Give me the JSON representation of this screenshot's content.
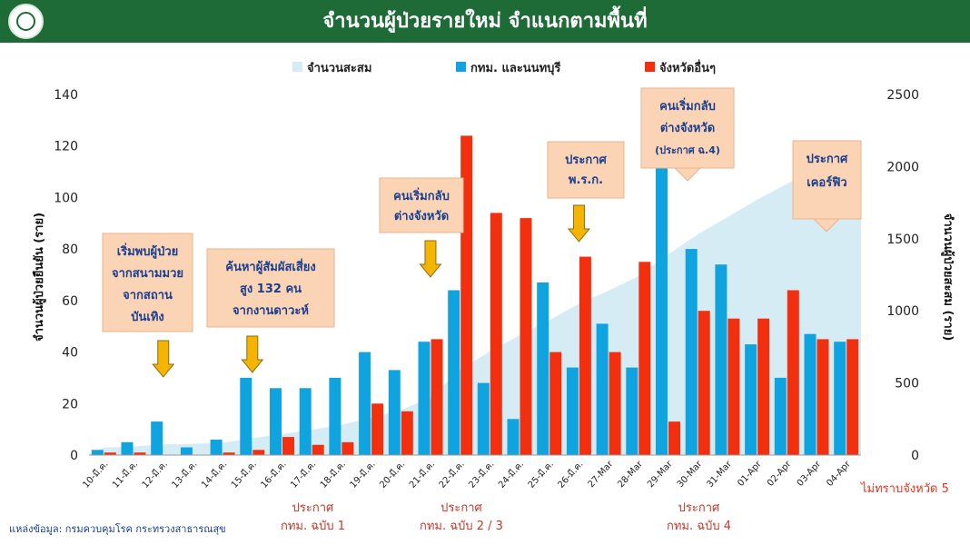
{
  "header": {
    "title": "จำนวนผู้ป่วยรายใหม่ จำแนกตามพื้นที่",
    "logo": "ministry-seal-icon"
  },
  "source": "แหล่งข้อมูล: กรมควบคุมโรค กระทรวงสาธารณสุข",
  "unknown_note": "ไม่ทราบจังหวัด 5",
  "colors": {
    "header": "#1f6b38",
    "cumulative": "#d6ecf5",
    "bkk": "#0fa3e0",
    "other": "#f2300f",
    "callout_fill": "#fbd3b5",
    "callout_text": "#1a3f8f",
    "arrow": "#f4b400"
  },
  "chart_data": {
    "type": "bar",
    "title": "จำนวนผู้ป่วยรายใหม่ จำแนกตามพื้นที่",
    "ylabel": "จำนวนผู้ป่วยยืนยัน (ราย)",
    "y2label": "จำนวนผู้ป่วยสะสม (ราย)",
    "ylim": [
      0,
      140
    ],
    "yticks": [
      0,
      20,
      40,
      60,
      80,
      100,
      120,
      140
    ],
    "y2lim": [
      0,
      2500
    ],
    "y2ticks": [
      0,
      500,
      1000,
      1500,
      2000,
      2500
    ],
    "legend_position": "top",
    "grid": false,
    "categories": [
      "10-มี.ค.",
      "11-มี.ค.",
      "12-มี.ค.",
      "13-มี.ค.",
      "14-มี.ค.",
      "15-มี.ค.",
      "16-มี.ค.",
      "17-มี.ค.",
      "18-มี.ค.",
      "19-มี.ค.",
      "20-มี.ค.",
      "21-มี.ค.",
      "22-มี.ค.",
      "23-มี.ค.",
      "24-มี.ค.",
      "25-มี.ค.",
      "26-มี.ค.",
      "27-Mar",
      "28-Mar",
      "29-Mar",
      "30-Mar",
      "31-Mar",
      "01-Apr",
      "02-Apr",
      "03-Apr",
      "04-Apr"
    ],
    "series": [
      {
        "name": "จำนวนสะสม",
        "type": "area",
        "axis": "right",
        "values": [
          53,
          59,
          75,
          78,
          85,
          117,
          145,
          175,
          210,
          260,
          310,
          400,
          590,
          720,
          830,
          935,
          1050,
          1140,
          1240,
          1390,
          1530,
          1650,
          1770,
          1880,
          1990,
          2060
        ]
      },
      {
        "name": "กทม. และนนทบุรี",
        "type": "bar",
        "axis": "left",
        "values": [
          2,
          5,
          13,
          3,
          6,
          30,
          26,
          26,
          30,
          40,
          33,
          44,
          64,
          28,
          14,
          67,
          34,
          51,
          34,
          112,
          80,
          74,
          43,
          30,
          47,
          44
        ]
      },
      {
        "name": "จังหวัดอื่นๆ",
        "type": "bar",
        "axis": "left",
        "values": [
          1,
          1,
          0,
          0,
          1,
          2,
          7,
          4,
          5,
          20,
          17,
          45,
          124,
          94,
          92,
          40,
          77,
          40,
          75,
          13,
          56,
          53,
          53,
          64,
          45,
          45
        ]
      }
    ],
    "annotations": [
      {
        "lines": [
          "เริ่มพบผู้ป่วย",
          "จากสนามมวย",
          "จากสถาน",
          "บันเทิง"
        ],
        "target": "12-มี.ค."
      },
      {
        "lines": [
          "ค้นหาผู้สัมผัสเสี่ยง",
          "สูง 132 คน",
          "จากงานดาวะห์"
        ],
        "target": "15-มี.ค."
      },
      {
        "lines": [
          "คนเริ่มกลับ",
          "ต่างจังหวัด"
        ],
        "target": "21-มี.ค."
      },
      {
        "lines": [
          "ประกาศ",
          "พ.ร.ก."
        ],
        "target": "26-มี.ค."
      },
      {
        "lines": [
          "คนเริ่มกลับ",
          "ต่างจังหวัด",
          "(ประกาศ ฉ.4)"
        ],
        "target": "29-Mar"
      },
      {
        "lines": [
          "ประกาศ",
          "เคอร์ฟิว"
        ],
        "target": "03-Apr"
      }
    ],
    "below_axis_notes": [
      {
        "lines": [
          "ประกาศ",
          "กทม. ฉบับ 1"
        ],
        "target": "16-มี.ค."
      },
      {
        "lines": [
          "ประกาศ",
          "กทม. ฉบับ 2 / 3"
        ],
        "target": "21-มี.ค."
      },
      {
        "lines": [
          "ประกาศ",
          "กทม. ฉบับ 4"
        ],
        "target": "29-Mar"
      }
    ]
  }
}
